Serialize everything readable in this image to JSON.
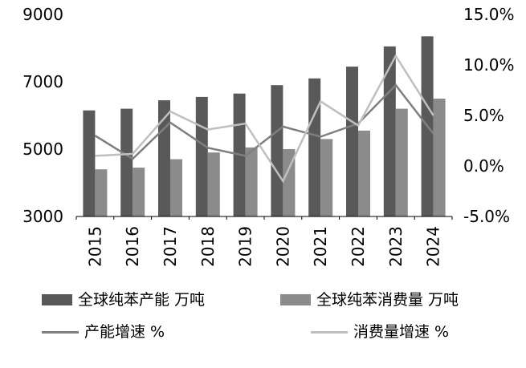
{
  "chart_data": {
    "type": "bar",
    "subtype": "combo-bar-line",
    "title": "",
    "categories": [
      "2015",
      "2016",
      "2017",
      "2018",
      "2019",
      "2020",
      "2021",
      "2022",
      "2023",
      "2024"
    ],
    "bar_series": [
      {
        "key": "capacity-bars",
        "name": "全球纯苯产能 万吨",
        "axis": "left",
        "color": "#595959",
        "values": [
          6150,
          6200,
          6450,
          6550,
          6650,
          6900,
          7100,
          7450,
          8050,
          8350
        ]
      },
      {
        "key": "consumption-bars",
        "name": "全球纯苯消费量 万吨",
        "axis": "left",
        "color": "#8b8b8b",
        "values": [
          4400,
          4450,
          4700,
          4900,
          5050,
          5000,
          5300,
          5550,
          6200,
          6500
        ]
      }
    ],
    "line_series": [
      {
        "key": "capacity-growth-line",
        "name": "产能增速 %",
        "axis": "right",
        "color": "#7f7f7f",
        "values": [
          3.0,
          0.7,
          4.3,
          1.8,
          1.0,
          3.9,
          2.9,
          4.2,
          8.0,
          3.2
        ]
      },
      {
        "key": "consumption-growth-line",
        "name": "消费量增速 %",
        "axis": "right",
        "color": "#bfbfbf",
        "values": [
          1.0,
          1.2,
          5.4,
          3.6,
          4.2,
          -1.5,
          6.4,
          4.0,
          10.9,
          5.0
        ]
      }
    ],
    "left_axis": {
      "min": 3000,
      "max": 9000,
      "tick_values": [
        9000,
        7000,
        5000,
        3000
      ],
      "tick_labels": [
        "9000",
        "7000",
        "5000",
        "3000"
      ]
    },
    "right_axis": {
      "min": -5,
      "max": 15,
      "tick_values": [
        15,
        10,
        5,
        0,
        -5
      ],
      "tick_labels": [
        "15.0%",
        "10.0%",
        "5.0%",
        "0.0%",
        "-5.0%"
      ]
    },
    "grid": false,
    "legend_position": "bottom",
    "axis_color": "#000000"
  }
}
